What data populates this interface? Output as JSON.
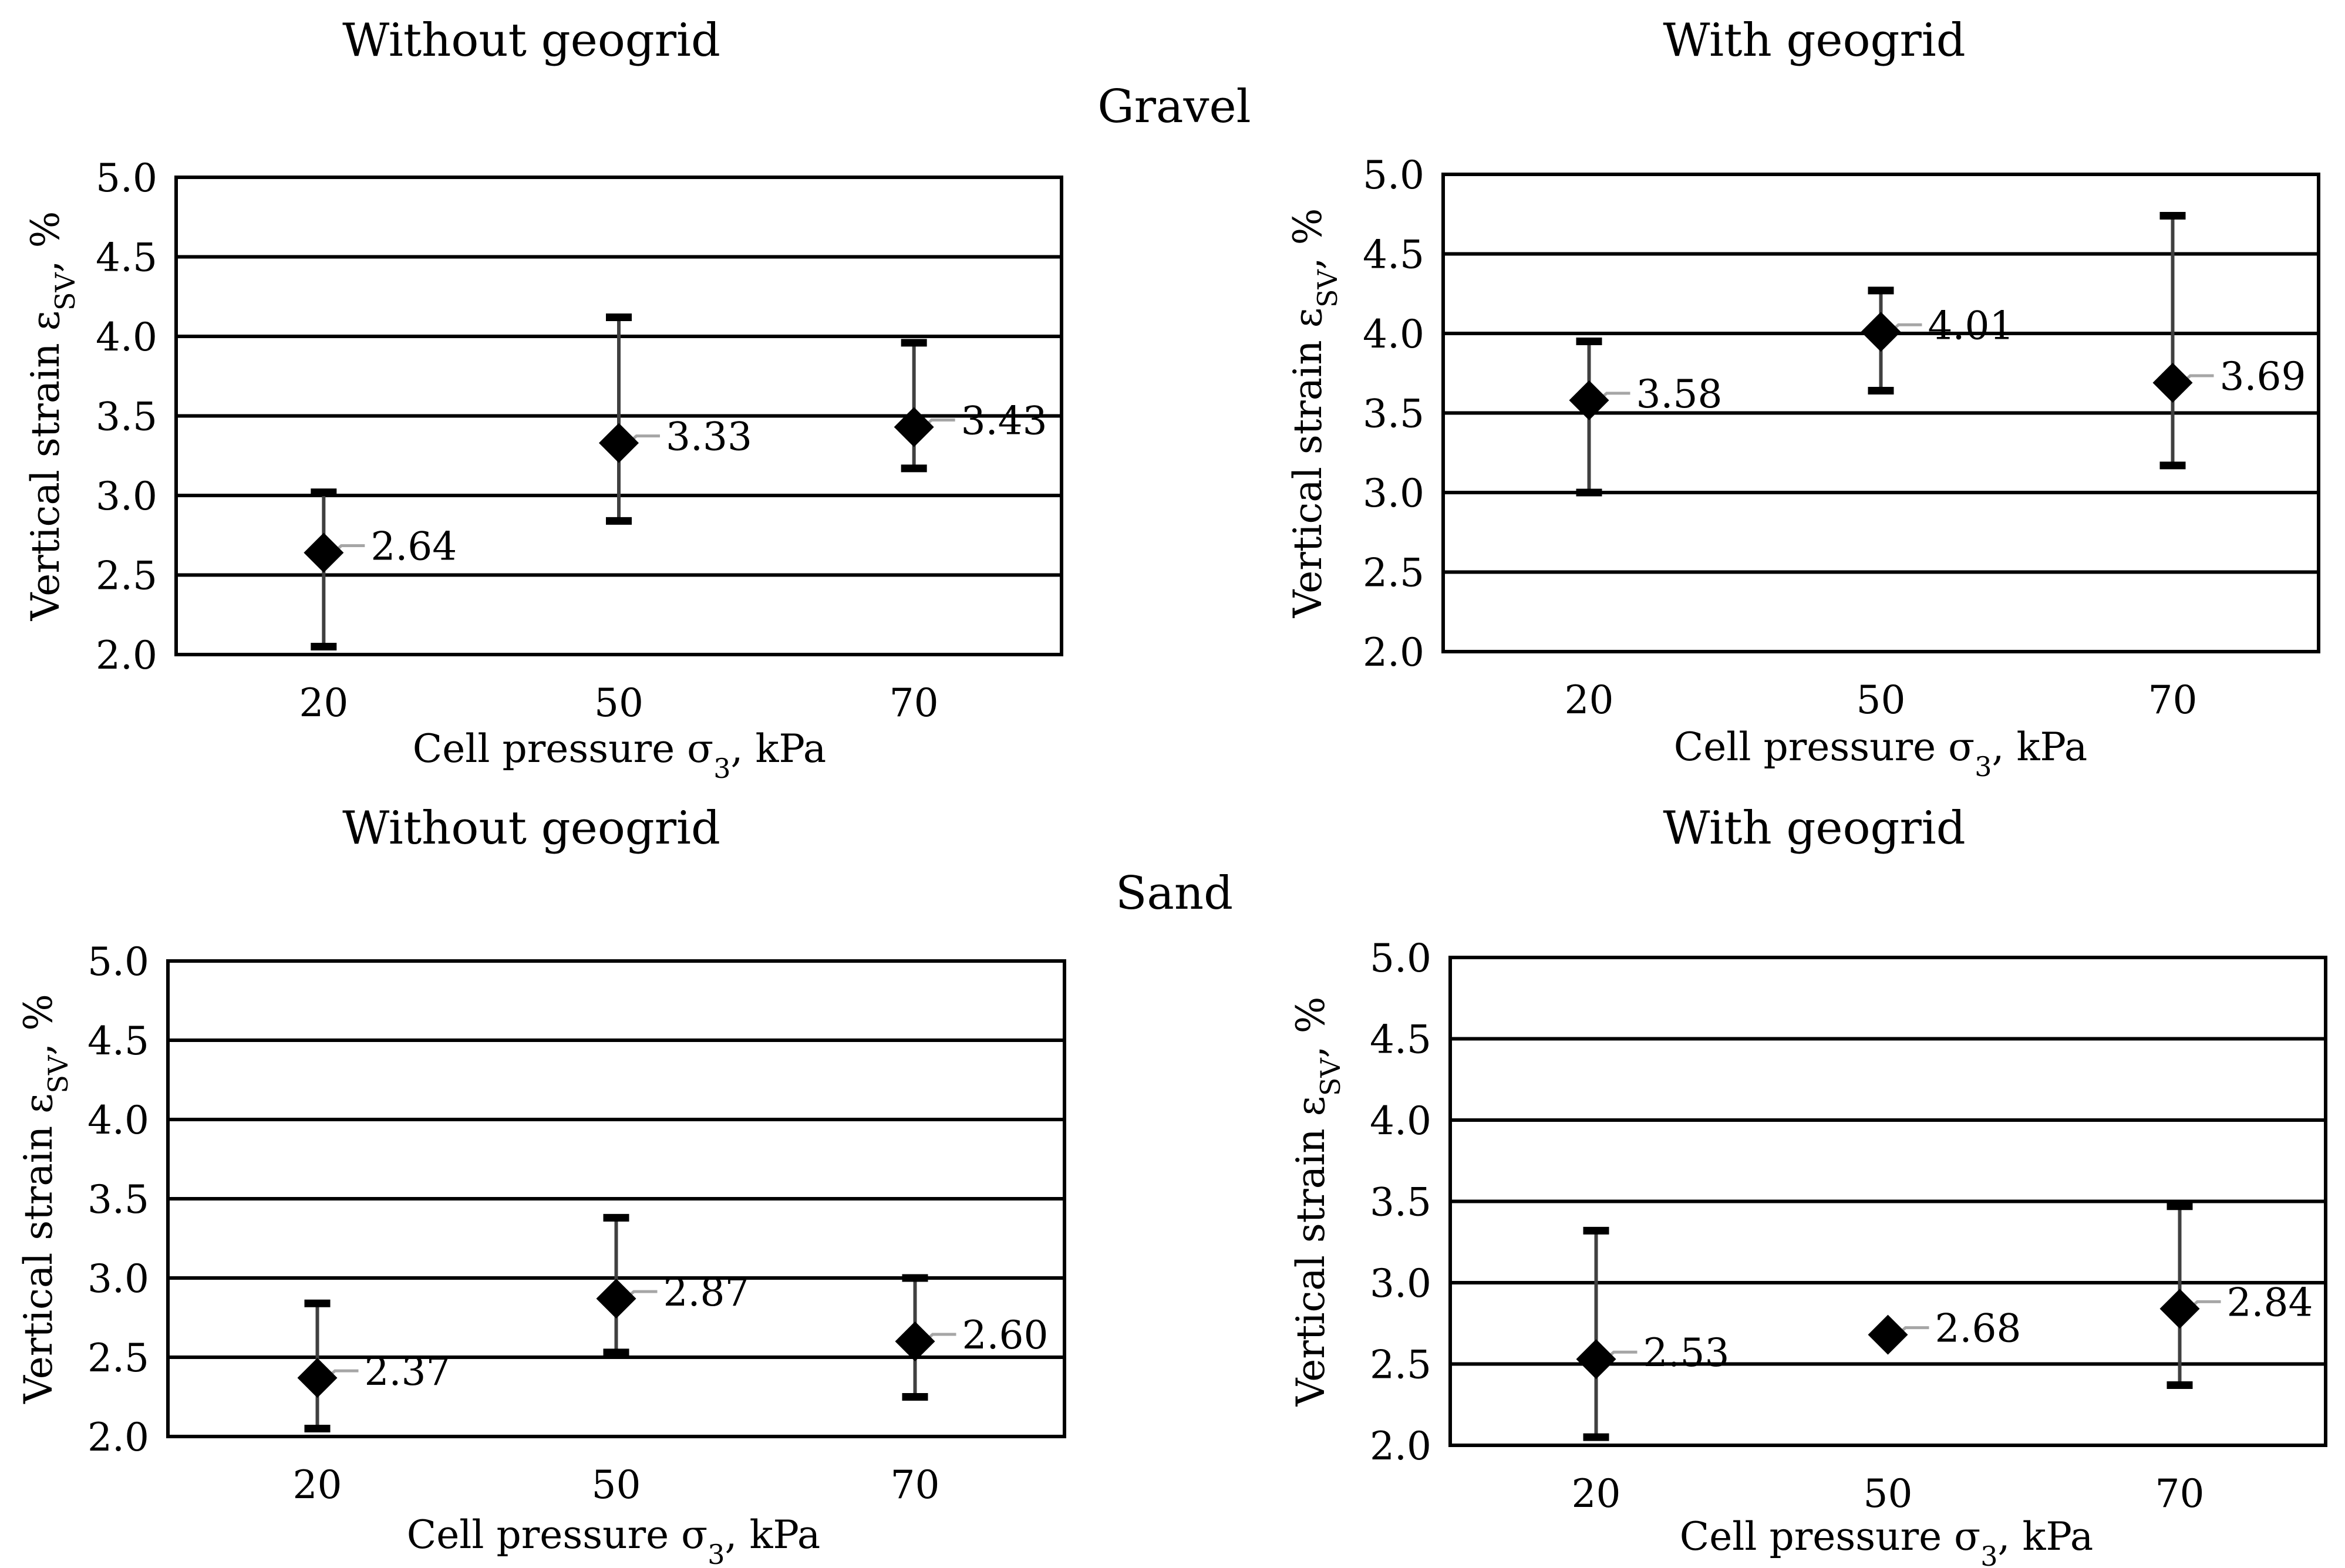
{
  "figure": {
    "group_labels": [
      "Gravel",
      "Sand"
    ]
  },
  "colors": {
    "grid": "#000000",
    "frame": "#000000",
    "marker": "#000000",
    "error_bar": "#404040",
    "error_cap": "#000000",
    "leader": "#a6a6a6",
    "text": "#000000"
  },
  "chart_data": [
    {
      "type": "scatter",
      "title": "Without geogrid",
      "group": "Gravel",
      "xlabel": "Cell pressure σ₃, kPa",
      "ylabel": "Vertical strain εSV, %",
      "categories": [
        "20",
        "50",
        "70"
      ],
      "values": [
        2.64,
        3.33,
        3.43
      ],
      "data_labels": [
        "2.64",
        "3.33",
        "3.43"
      ],
      "error_low": [
        2.05,
        2.84,
        3.17
      ],
      "error_high": [
        3.02,
        4.12,
        3.96
      ],
      "ylim": [
        2.0,
        5.0
      ],
      "yticks": [
        "2.0",
        "2.5",
        "3.0",
        "3.5",
        "4.0",
        "4.5",
        "5.0"
      ],
      "grid": true
    },
    {
      "type": "scatter",
      "title": "With geogrid",
      "group": "Gravel",
      "xlabel": "Cell pressure σ₃, kPa",
      "ylabel": "Vertical strain εSV, %",
      "categories": [
        "20",
        "50",
        "70"
      ],
      "values": [
        3.58,
        4.01,
        3.69
      ],
      "data_labels": [
        "3.58",
        "4.01",
        "3.69"
      ],
      "error_low": [
        3.0,
        3.64,
        3.17
      ],
      "error_high": [
        3.95,
        4.27,
        4.74
      ],
      "ylim": [
        2.0,
        5.0
      ],
      "yticks": [
        "2.0",
        "2.5",
        "3.0",
        "3.5",
        "4.0",
        "4.5",
        "5.0"
      ],
      "grid": true
    },
    {
      "type": "scatter",
      "title": "Without geogrid",
      "group": "Sand",
      "xlabel": "Cell pressure σ₃, kPa",
      "ylabel": "Vertical strain εSV, %",
      "categories": [
        "20",
        "50",
        "70"
      ],
      "values": [
        2.37,
        2.87,
        2.6
      ],
      "data_labels": [
        "2.37",
        "2.87",
        "2.60"
      ],
      "error_low": [
        2.05,
        2.53,
        2.25
      ],
      "error_high": [
        2.84,
        3.38,
        3.0
      ],
      "ylim": [
        2.0,
        5.0
      ],
      "yticks": [
        "2.0",
        "2.5",
        "3.0",
        "3.5",
        "4.0",
        "4.5",
        "5.0"
      ],
      "grid": true
    },
    {
      "type": "scatter",
      "title": "With geogrid",
      "group": "Sand",
      "xlabel": "Cell pressure σ₃, kPa",
      "ylabel": "Vertical strain εSV, %",
      "categories": [
        "20",
        "50",
        "70"
      ],
      "values": [
        2.53,
        2.68,
        2.84
      ],
      "data_labels": [
        "2.53",
        "2.68",
        "2.84"
      ],
      "error_low": [
        2.05,
        null,
        2.37
      ],
      "error_high": [
        3.32,
        null,
        3.47
      ],
      "ylim": [
        2.0,
        5.0
      ],
      "yticks": [
        "2.0",
        "2.5",
        "3.0",
        "3.5",
        "4.0",
        "4.5",
        "5.0"
      ],
      "grid": true
    }
  ]
}
